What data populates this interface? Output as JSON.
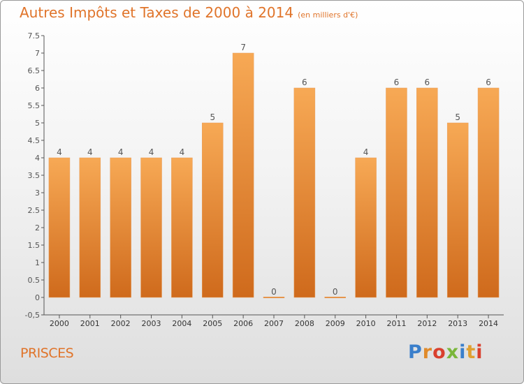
{
  "header": {
    "title": "Autres Impôts et Taxes de 2000 à 2014",
    "subtitle": "(en milliers d'€)"
  },
  "footer": {
    "commune": "PRISCES",
    "brand": "Proxiti",
    "brand_colors": [
      "#3a7fcb",
      "#e08a2a",
      "#d9402e",
      "#7ab63a",
      "#3a7fcb",
      "#e0a030",
      "#d9402e"
    ]
  },
  "colors": {
    "accent": "#e0742a",
    "bar_top": "#f7a955",
    "bar_bottom": "#cf6a1c",
    "axis": "#555555",
    "grid": "#cccccc"
  },
  "chart_data": {
    "type": "bar",
    "title": "Autres Impôts et Taxes de 2000 à 2014",
    "subtitle": "(en milliers d'€)",
    "xlabel": "",
    "ylabel": "",
    "categories": [
      "2000",
      "2001",
      "2002",
      "2003",
      "2004",
      "2005",
      "2006",
      "2007",
      "2008",
      "2009",
      "2010",
      "2011",
      "2012",
      "2013",
      "2014"
    ],
    "values": [
      4,
      4,
      4,
      4,
      4,
      5,
      7,
      0,
      6,
      0,
      4,
      6,
      6,
      5,
      6
    ],
    "data_labels": [
      "4",
      "4",
      "4",
      "4",
      "4",
      "5",
      "7",
      "0",
      "6",
      "0",
      "4",
      "6",
      "6",
      "5",
      "6"
    ],
    "ylim": [
      -0.5,
      7.5
    ],
    "yticks": [
      -0.5,
      0,
      0.5,
      1,
      1.5,
      2,
      2.5,
      3,
      3.5,
      4,
      4.5,
      5,
      5.5,
      6,
      6.5,
      7,
      7.5
    ],
    "ytick_labels": [
      "-0,5",
      "0",
      "0.5",
      "1",
      "1.5",
      "2",
      "2.5",
      "3",
      "3.5",
      "4",
      "4.5",
      "5",
      "5.5",
      "6",
      "6.5",
      "7",
      "7.5"
    ],
    "grid": false,
    "legend": "none"
  }
}
